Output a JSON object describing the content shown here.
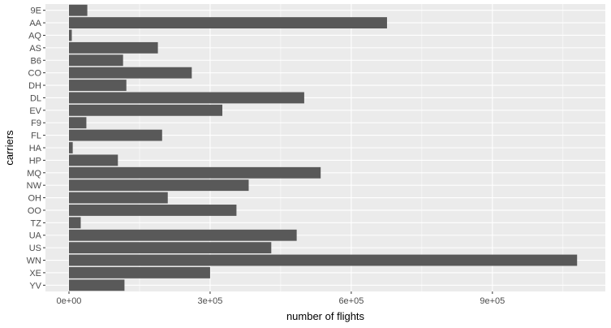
{
  "chart_data": {
    "type": "bar",
    "orientation": "horizontal",
    "title": "",
    "xlabel": "number of flights",
    "ylabel": "carriers",
    "categories": [
      "9E",
      "AA",
      "AQ",
      "AS",
      "B6",
      "CO",
      "DH",
      "DL",
      "EV",
      "F9",
      "FL",
      "HA",
      "HP",
      "MQ",
      "NW",
      "OH",
      "OO",
      "TZ",
      "UA",
      "US",
      "WN",
      "XE",
      "YV"
    ],
    "values": [
      39000,
      676000,
      6000,
      189000,
      115000,
      261000,
      122000,
      500000,
      326000,
      37000,
      198000,
      8000,
      104000,
      535000,
      382000,
      210000,
      356000,
      25000,
      484000,
      430000,
      1080000,
      300000,
      118000
    ],
    "xlim": [
      -50000,
      1140000
    ],
    "xticks": [
      0,
      300000,
      600000,
      900000
    ],
    "xtick_labels": [
      "0e+00",
      "3e+05",
      "6e+05",
      "9e+05"
    ],
    "grid": true,
    "colors": {
      "panel": "#ebebeb",
      "grid_major": "#ffffff",
      "bar": "#595959",
      "tick_text": "#4d4d4d"
    }
  }
}
